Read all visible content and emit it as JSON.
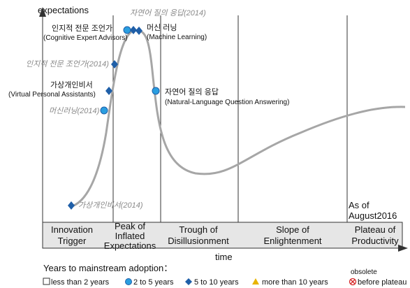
{
  "axes": {
    "y_label": "expectations",
    "x_label": "time"
  },
  "phases": [
    {
      "id": "innovation",
      "lines": [
        "Innovation",
        "Trigger"
      ]
    },
    {
      "id": "peak",
      "lines": [
        "Peak of",
        "Inflated",
        "Expectations"
      ]
    },
    {
      "id": "trough",
      "lines": [
        "Trough of",
        "Disillusionment"
      ]
    },
    {
      "id": "slope",
      "lines": [
        "Slope of",
        "Enlightenment"
      ]
    },
    {
      "id": "plateau",
      "lines": [
        "Plateau of",
        "Productivity"
      ]
    }
  ],
  "as_of": [
    "As of",
    "August2016"
  ],
  "labels": {
    "nl2014": "자연어 질의 응답(2014)",
    "cea_ko": "인지적 전문 조언가",
    "cea_en": "(Cognitive Expert Advisors)",
    "ml_ko": "머신 러닝",
    "ml_en": "(Machine Learning)",
    "cea2014": "인지적 전문 조언가(2014)",
    "vpa_ko": "가상개인비서",
    "vpa_en": "(Virtual Personal Assistants)",
    "nl_ko": "자연어 질의 응답",
    "nl_en": "(Natural-Language Question Answering)",
    "ml2014": "머신러닝(2014)",
    "vpa2014": "가상개인비서(2014)"
  },
  "legend": {
    "title": "Years to mainstream adoption：",
    "obsolete": "obsolete",
    "items": [
      {
        "icon": "square-hollow",
        "text": "less than 2 years"
      },
      {
        "icon": "circle",
        "text": "2 to 5 years"
      },
      {
        "icon": "diamond",
        "text": "5 to 10 years"
      },
      {
        "icon": "triangle",
        "text": "more than 10 years"
      },
      {
        "icon": "crossed-circle",
        "text": "before plateau"
      }
    ]
  },
  "colors": {
    "curve": "#a6a6a6",
    "marker_fill": "#2a9ee0",
    "diamond_fill": "#1f5fa8",
    "triangle_fill": "#e8b400",
    "crossed": "#d62828"
  }
}
